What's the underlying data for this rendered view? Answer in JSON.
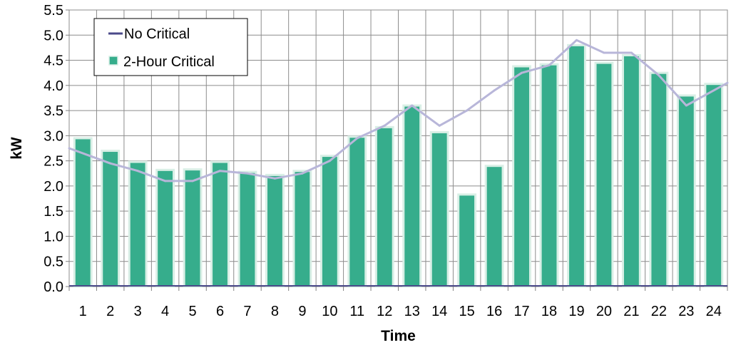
{
  "chart_data": {
    "type": "bar",
    "title": "",
    "xlabel": "Time",
    "ylabel": "kW",
    "ylim": [
      0,
      5.5
    ],
    "yticks": [
      "0.0",
      "0.5",
      "1.0",
      "1.5",
      "2.0",
      "2.5",
      "3.0",
      "3.5",
      "4.0",
      "4.5",
      "5.0",
      "5.5"
    ],
    "categories": [
      "1",
      "2",
      "3",
      "4",
      "5",
      "6",
      "7",
      "8",
      "9",
      "10",
      "11",
      "12",
      "13",
      "14",
      "15",
      "16",
      "17",
      "18",
      "19",
      "20",
      "21",
      "22",
      "23",
      "24"
    ],
    "grid": true,
    "legend_position": "top-left",
    "series": [
      {
        "name": "No Critical",
        "type": "line",
        "color": "#b8b6d9",
        "legend_color": "#4b4a8a",
        "values": [
          2.75,
          2.45,
          2.3,
          2.1,
          2.1,
          2.3,
          2.25,
          2.15,
          2.25,
          2.5,
          2.95,
          3.2,
          3.6,
          3.2,
          3.5,
          3.9,
          4.25,
          4.4,
          4.9,
          4.65,
          4.65,
          4.2,
          3.6,
          4.05
        ]
      },
      {
        "name": "2-Hour Critical",
        "type": "bar",
        "color": "#36ad8c",
        "edge_color": "#d9efe6",
        "values": [
          2.95,
          2.7,
          2.48,
          2.32,
          2.33,
          2.48,
          2.28,
          2.22,
          2.3,
          2.6,
          2.98,
          3.17,
          3.6,
          3.07,
          1.83,
          2.4,
          4.38,
          4.42,
          4.8,
          4.45,
          4.6,
          4.25,
          3.8,
          4.03
        ]
      }
    ]
  }
}
